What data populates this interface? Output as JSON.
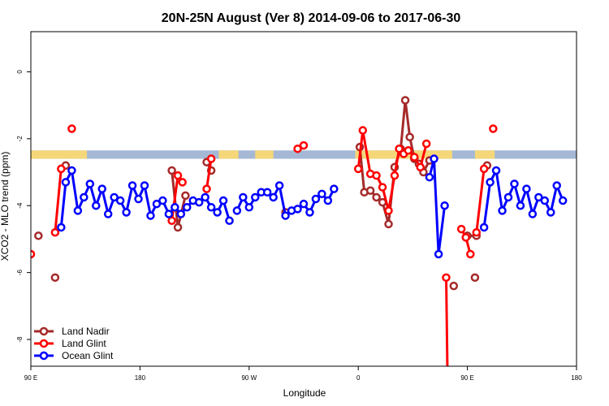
{
  "chart_data": {
    "type": "line",
    "title": "20N-25N August (Ver 8)   2014-09-06 to 2017-06-30",
    "xlabel": "Longitude",
    "ylabel": "XCO2 - MLO trend (ppm)",
    "xlim": [
      -180,
      180
    ],
    "ylim": [
      -8.8,
      1.2
    ],
    "x_ticks": [
      {
        "value": -180,
        "label": "90 E"
      },
      {
        "value": -108,
        "label": "180"
      },
      {
        "value": -36,
        "label": "90 W"
      },
      {
        "value": 36,
        "label": "0"
      },
      {
        "value": 108,
        "label": "90 E"
      },
      {
        "value": 180,
        "label": "180"
      }
    ],
    "y_ticks": [
      {
        "value": 0,
        "label": "0"
      },
      {
        "value": -2,
        "label": "-2"
      },
      {
        "value": -4,
        "label": "-4"
      },
      {
        "value": -6,
        "label": "-6"
      },
      {
        "value": -8,
        "label": "-8"
      }
    ],
    "land_band": {
      "y_top": -2.35,
      "y_bottom": -2.6,
      "ocean_color": "#a4b8d6",
      "land_color": "#f5d779"
    },
    "land_segments": [
      [
        -180,
        -143
      ],
      [
        -56,
        -43
      ],
      [
        -32,
        -20
      ],
      [
        34,
        98
      ],
      [
        113,
        126
      ]
    ],
    "legend": {
      "position": "bottom-left"
    },
    "series": [
      {
        "name": "Land Nadir",
        "color": "#a52a2a",
        "segments": [
          [
            [
              -175,
              -4.9
            ]
          ],
          [
            [
              -164,
              -6.15
            ]
          ],
          [
            [
              -157,
              -2.8
            ]
          ],
          [
            [
              -87,
              -2.95
            ],
            [
              -83,
              -4.65
            ],
            [
              -78,
              -3.7
            ]
          ],
          [
            [
              -64,
              -2.7
            ],
            [
              -61,
              -2.95
            ]
          ],
          [
            [
              -12,
              -4.2
            ]
          ],
          [
            [
              37,
              -2.25
            ],
            [
              40,
              -3.6
            ],
            [
              44,
              -3.55
            ],
            [
              48,
              -3.75
            ],
            [
              52,
              -3.9
            ],
            [
              56,
              -4.55
            ],
            [
              60,
              -2.85
            ],
            [
              64,
              -2.3
            ],
            [
              67,
              -0.85
            ],
            [
              70,
              -1.95
            ],
            [
              73,
              -2.6
            ],
            [
              76,
              -2.75
            ],
            [
              79,
              -3.0
            ],
            [
              83,
              -2.65
            ]
          ],
          [
            [
              99,
              -6.4
            ]
          ],
          [
            [
              113,
              -6.15
            ]
          ],
          [
            [
              121,
              -2.8
            ]
          ],
          [
            [
              108,
              -4.9
            ],
            [
              114,
              -4.9
            ]
          ]
        ]
      },
      {
        "name": "Land Glint",
        "color": "#ff0000",
        "segments": [
          [
            [
              -180,
              -5.45
            ]
          ],
          [
            [
              -164,
              -4.8
            ],
            [
              -160,
              -2.9
            ]
          ],
          [
            [
              -153,
              -1.7
            ]
          ],
          [
            [
              -87,
              -4.45
            ],
            [
              -83,
              -3.1
            ],
            [
              -80,
              -3.3
            ]
          ],
          [
            [
              -64,
              -3.5
            ],
            [
              -61,
              -2.6
            ]
          ],
          [
            [
              -4,
              -2.3
            ],
            [
              0,
              -2.2
            ]
          ],
          [
            [
              36,
              -2.9
            ],
            [
              39,
              -1.75
            ],
            [
              44,
              -3.05
            ],
            [
              48,
              -3.1
            ],
            [
              52,
              -3.45
            ],
            [
              56,
              -4.15
            ],
            [
              60,
              -3.1
            ],
            [
              63,
              -2.3
            ],
            [
              66,
              -2.45
            ],
            [
              69,
              -2.35
            ],
            [
              73,
              -2.55
            ],
            [
              77,
              -2.85
            ],
            [
              81,
              -2.15
            ]
          ],
          [
            [
              94,
              -6.15
            ],
            [
              95,
              -9.5
            ]
          ],
          [
            [
              104,
              -4.7
            ],
            [
              107,
              -4.95
            ],
            [
              110,
              -5.45
            ]
          ],
          [
            [
              114,
              -4.8
            ],
            [
              119,
              -2.9
            ]
          ],
          [
            [
              125,
              -1.7
            ]
          ]
        ]
      },
      {
        "name": "Ocean Glint",
        "color": "#0000ff",
        "segments": [
          [
            [
              -160,
              -4.65
            ],
            [
              -157,
              -3.3
            ],
            [
              -153,
              -2.95
            ],
            [
              -149,
              -4.15
            ],
            [
              -145,
              -3.75
            ],
            [
              -141,
              -3.35
            ],
            [
              -137,
              -4.0
            ],
            [
              -133,
              -3.5
            ],
            [
              -129,
              -4.25
            ],
            [
              -125,
              -3.75
            ],
            [
              -121,
              -3.85
            ],
            [
              -117,
              -4.2
            ],
            [
              -113,
              -3.4
            ],
            [
              -109,
              -3.8
            ],
            [
              -105,
              -3.4
            ],
            [
              -101,
              -4.3
            ],
            [
              -97,
              -3.95
            ],
            [
              -93,
              -3.85
            ],
            [
              -89,
              -4.25
            ],
            [
              -85,
              -4.05
            ],
            [
              -81,
              -4.25
            ],
            [
              -77,
              -4.05
            ],
            [
              -73,
              -3.85
            ],
            [
              -69,
              -3.9
            ],
            [
              -65,
              -3.75
            ],
            [
              -61,
              -4.05
            ],
            [
              -57,
              -4.2
            ],
            [
              -53,
              -3.85
            ],
            [
              -49,
              -4.45
            ]
          ],
          [
            [
              -44,
              -4.15
            ],
            [
              -40,
              -3.75
            ],
            [
              -36,
              -4.05
            ],
            [
              -32,
              -3.75
            ],
            [
              -28,
              -3.6
            ],
            [
              -24,
              -3.6
            ],
            [
              -20,
              -3.75
            ],
            [
              -16,
              -3.4
            ],
            [
              -12,
              -4.3
            ],
            [
              -8,
              -4.15
            ],
            [
              -4,
              -4.1
            ],
            [
              0,
              -3.95
            ],
            [
              4,
              -4.2
            ],
            [
              8,
              -3.8
            ],
            [
              12,
              -3.65
            ],
            [
              16,
              -3.85
            ],
            [
              20,
              -3.5
            ]
          ],
          [
            [
              83,
              -3.15
            ],
            [
              86,
              -2.6
            ],
            [
              89,
              -5.45
            ],
            [
              93,
              -4.0
            ]
          ],
          [
            [
              119,
              -4.65
            ],
            [
              123,
              -3.3
            ],
            [
              127,
              -2.95
            ],
            [
              131,
              -4.15
            ],
            [
              135,
              -3.75
            ],
            [
              139,
              -3.35
            ],
            [
              143,
              -4.0
            ],
            [
              147,
              -3.5
            ],
            [
              151,
              -4.25
            ],
            [
              155,
              -3.75
            ],
            [
              159,
              -3.85
            ],
            [
              163,
              -4.2
            ],
            [
              167,
              -3.4
            ],
            [
              171,
              -3.85
            ]
          ]
        ]
      }
    ]
  }
}
